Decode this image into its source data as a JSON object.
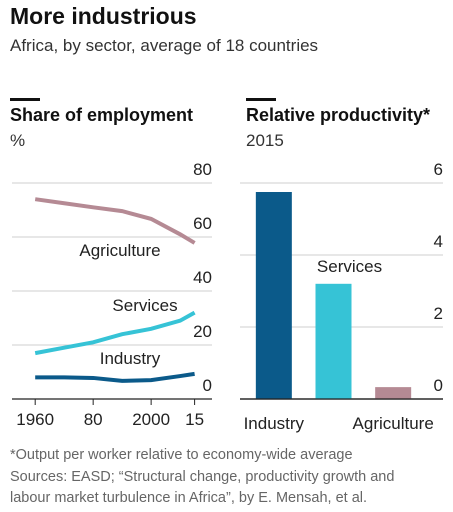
{
  "title": "More industrious",
  "subtitle": "Africa, by sector, average of 18 countries",
  "footnote": "*Output per worker relative to economy-wide average",
  "source_lines": [
    "Sources: EASD; “Structural change, productivity growth and",
    "labour market turbulence in Africa”, by E. Mensah, et al."
  ],
  "chart_data": [
    {
      "type": "line",
      "title": "Share of employment",
      "subtitle": "%",
      "x": [
        1960,
        1970,
        1980,
        1990,
        2000,
        2010,
        2015
      ],
      "series": [
        {
          "name": "Agriculture",
          "color": "#b58a94",
          "values": [
            74,
            72.5,
            71,
            69.6,
            66.7,
            61,
            57.8
          ]
        },
        {
          "name": "Services",
          "color": "#36c3d6",
          "values": [
            17,
            19,
            21,
            24,
            26,
            29,
            32
          ]
        },
        {
          "name": "Industry",
          "color": "#0b5a8a",
          "values": [
            8,
            8,
            7.8,
            6.7,
            7,
            8.5,
            9.3
          ]
        }
      ],
      "xlim": [
        1952,
        2021
      ],
      "xticks": [
        1960,
        {
          "value": 1980,
          "label": "80"
        },
        2000,
        {
          "value": 2015,
          "label": "15"
        }
      ],
      "ylim": [
        0,
        80
      ],
      "yticks": [
        0,
        20,
        40,
        60,
        80
      ],
      "grid": true
    },
    {
      "type": "bar",
      "title": "Relative productivity*",
      "subtitle": "2015",
      "categories": [
        "Industry",
        "Services",
        "Agriculture"
      ],
      "values": [
        5.75,
        3.2,
        0.33
      ],
      "colors": [
        "#0b5a8a",
        "#36c3d6",
        "#b58a94"
      ],
      "ylim": [
        0,
        6
      ],
      "yticks": [
        0,
        2,
        4,
        6
      ],
      "grid": true
    }
  ]
}
